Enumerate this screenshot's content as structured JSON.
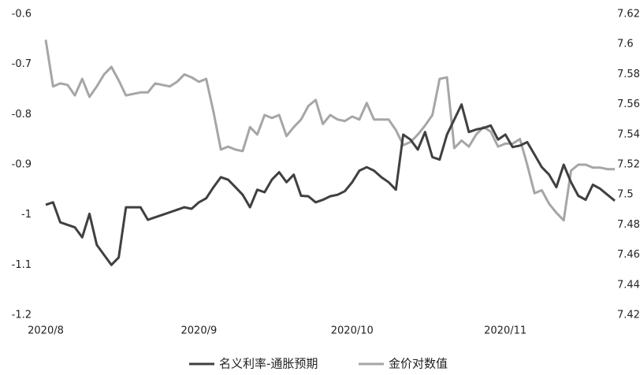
{
  "chart_data": {
    "type": "line",
    "categories": [
      "2020/8",
      null,
      null,
      null,
      null,
      null,
      null,
      null,
      null,
      null,
      null,
      null,
      null,
      null,
      null,
      null,
      null,
      null,
      null,
      null,
      null,
      "2020/9",
      null,
      null,
      null,
      null,
      null,
      null,
      null,
      null,
      null,
      null,
      null,
      null,
      null,
      null,
      null,
      null,
      null,
      null,
      null,
      null,
      "2020/10",
      null,
      null,
      null,
      null,
      null,
      null,
      null,
      null,
      null,
      null,
      null,
      null,
      null,
      null,
      null,
      null,
      null,
      null,
      null,
      null,
      "2020/11",
      null,
      null,
      null,
      null,
      null,
      null,
      null,
      null,
      null,
      null,
      null,
      null,
      null,
      null,
      null
    ],
    "series": [
      {
        "name": "名义利率-通胀预期",
        "color": "#404040",
        "axis": "y",
        "values": [
          -0.98,
          -0.975,
          -1.015,
          -1.02,
          -1.025,
          -1.045,
          -0.998,
          -1.06,
          -1.08,
          -1.1,
          -1.085,
          -0.985,
          -0.985,
          -0.985,
          -1.01,
          -1.005,
          -1.0,
          -0.995,
          -0.99,
          -0.985,
          -0.988,
          -0.975,
          -0.967,
          -0.945,
          -0.925,
          -0.93,
          -0.945,
          -0.96,
          -0.985,
          -0.95,
          -0.955,
          -0.93,
          -0.915,
          -0.935,
          -0.92,
          -0.962,
          -0.963,
          -0.975,
          -0.97,
          -0.963,
          -0.96,
          -0.953,
          -0.935,
          -0.912,
          -0.905,
          -0.912,
          -0.925,
          -0.935,
          -0.95,
          -0.84,
          -0.85,
          -0.87,
          -0.835,
          -0.885,
          -0.89,
          -0.84,
          -0.81,
          -0.78,
          -0.835,
          -0.83,
          -0.827,
          -0.822,
          -0.85,
          -0.84,
          -0.865,
          -0.862,
          -0.855,
          -0.88,
          -0.905,
          -0.92,
          -0.945,
          -0.9,
          -0.935,
          -0.962,
          -0.97,
          -0.94,
          -0.948,
          -0.96,
          -0.972
        ]
      },
      {
        "name": "金价对数值",
        "color": "#a6a6a6",
        "axis": "y2",
        "values": [
          7.603,
          7.572,
          7.574,
          7.573,
          7.566,
          7.577,
          7.565,
          7.572,
          7.58,
          7.585,
          7.576,
          7.566,
          7.567,
          7.568,
          7.568,
          7.574,
          7.573,
          7.572,
          7.575,
          7.58,
          7.578,
          7.575,
          7.577,
          7.555,
          7.53,
          7.532,
          7.53,
          7.529,
          7.545,
          7.54,
          7.553,
          7.551,
          7.553,
          7.539,
          7.545,
          7.55,
          7.559,
          7.563,
          7.547,
          7.553,
          7.55,
          7.549,
          7.552,
          7.55,
          7.561,
          7.55,
          7.55,
          7.55,
          7.543,
          7.533,
          7.535,
          7.54,
          7.546,
          7.553,
          7.577,
          7.578,
          7.531,
          7.536,
          7.532,
          7.54,
          7.545,
          7.542,
          7.532,
          7.534,
          7.534,
          7.537,
          7.52,
          7.501,
          7.503,
          7.494,
          7.488,
          7.483,
          7.516,
          7.52,
          7.52,
          7.518,
          7.518,
          7.517,
          7.517
        ]
      }
    ],
    "ylim": [
      -1.2,
      -0.6
    ],
    "yticks": [
      -0.6,
      -0.7,
      -0.8,
      -0.9,
      -1,
      -1.1,
      -1.2
    ],
    "y2lim": [
      7.42,
      7.62
    ],
    "y2ticks": [
      7.62,
      7.6,
      7.58,
      7.56,
      7.54,
      7.52,
      7.5,
      7.48,
      7.46,
      7.44,
      7.42
    ],
    "grid": false
  }
}
